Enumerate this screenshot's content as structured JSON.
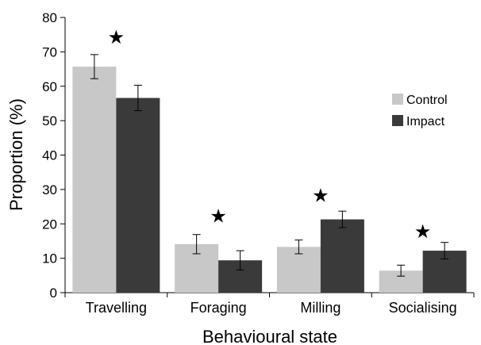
{
  "chart_data": {
    "type": "bar",
    "xlabel": "Behavioural state",
    "ylabel": "Proportion (%)",
    "ylim": [
      0,
      80
    ],
    "yticks": [
      0,
      10,
      20,
      30,
      40,
      50,
      60,
      70,
      80
    ],
    "grid": false,
    "legend_position": "right",
    "categories": [
      "Travelling",
      "Foraging",
      "Milling",
      "Socialising"
    ],
    "series": [
      {
        "name": "Control",
        "color": "#c8c8c8",
        "values": [
          65.7,
          14.1,
          13.3,
          6.4
        ],
        "error": [
          3.5,
          2.8,
          2.0,
          1.6
        ]
      },
      {
        "name": "Impact",
        "color": "#3a3a3a",
        "values": [
          56.6,
          9.4,
          21.3,
          12.2
        ],
        "error": [
          3.7,
          2.8,
          2.4,
          2.4
        ]
      }
    ],
    "annotations": [
      {
        "category": "Travelling",
        "symbol": "★",
        "y": 74.5
      },
      {
        "category": "Foraging",
        "symbol": "★",
        "y": 22.5
      },
      {
        "category": "Milling",
        "symbol": "★",
        "y": 28.5
      },
      {
        "category": "Socialising",
        "symbol": "★",
        "y": 18.0
      }
    ]
  }
}
